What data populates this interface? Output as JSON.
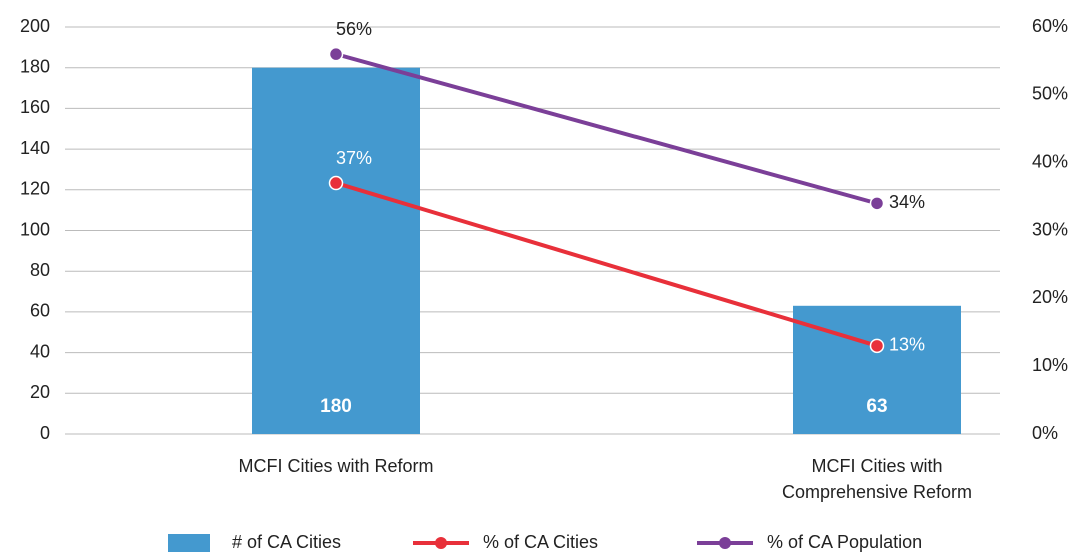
{
  "chart_data": {
    "type": "bar_line",
    "categories": [
      "MCFI Cities with Reform",
      "MCFI Cities with Comprehensive Reform"
    ],
    "series": [
      {
        "name": "# of CA Cities",
        "type": "bar",
        "color": "#4499cf",
        "values": [
          180,
          63
        ]
      },
      {
        "name": "% of CA Cities",
        "type": "line",
        "axis": "y2",
        "color": "#e8303a",
        "values": [
          37,
          13
        ],
        "value_labels": [
          "37%",
          "13%"
        ]
      },
      {
        "name": "% of CA Population",
        "type": "line",
        "axis": "y2",
        "color": "#7b3f98",
        "values": [
          56,
          34
        ],
        "value_labels": [
          "56%",
          "34%"
        ]
      }
    ],
    "ylim": [
      0,
      200
    ],
    "yticks": [
      0,
      20,
      40,
      60,
      80,
      100,
      120,
      140,
      160,
      180,
      200
    ],
    "y2lim": [
      0,
      60
    ],
    "y2ticks": [
      {
        "value": 0,
        "label": "0%"
      },
      {
        "value": 10,
        "label": "10%"
      },
      {
        "value": 20,
        "label": "20%"
      },
      {
        "value": 30,
        "label": "30%"
      },
      {
        "value": 40,
        "label": "40%"
      },
      {
        "value": 50,
        "label": "50%"
      },
      {
        "value": 60,
        "label": "60%"
      }
    ],
    "grid": true,
    "legend": "bottom"
  }
}
